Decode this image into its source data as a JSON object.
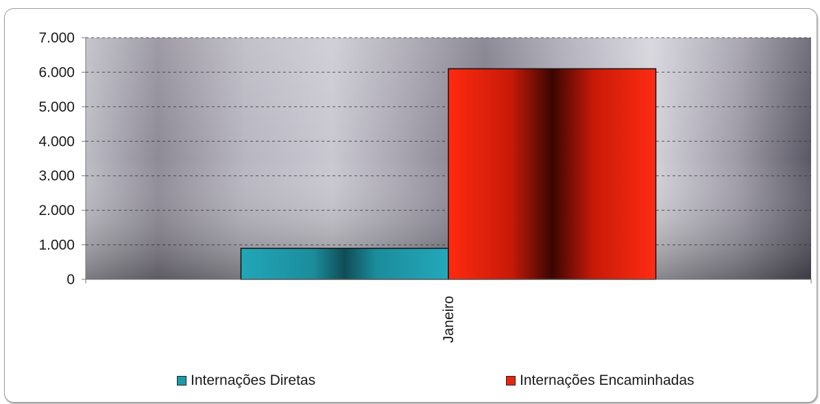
{
  "chart_data": {
    "type": "bar",
    "categories": [
      "Janeiro"
    ],
    "series": [
      {
        "name": "Internações Diretas",
        "values": [
          900
        ],
        "color": "#1a9aaa"
      },
      {
        "name": "Internações Encaminhadas",
        "values": [
          6100
        ],
        "color": "#ff2a10"
      }
    ],
    "ylim": [
      0,
      7000
    ],
    "yticks": [
      0,
      1000,
      2000,
      3000,
      4000,
      5000,
      6000,
      7000
    ],
    "ytick_labels": [
      "0",
      "1.000",
      "2.000",
      "3.000",
      "4.000",
      "5.000",
      "6.000",
      "7.000"
    ],
    "grid": true,
    "legend_position": "bottom",
    "title": "",
    "xlabel": "",
    "ylabel": ""
  }
}
